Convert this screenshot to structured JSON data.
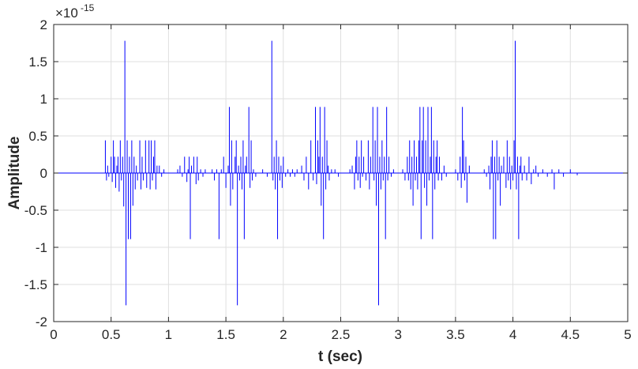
{
  "chart_data": {
    "type": "line",
    "title": "",
    "xlabel": "t (sec)",
    "ylabel": "Amplitude",
    "xlim": [
      0,
      5
    ],
    "ylim": [
      -2e-15,
      2e-15
    ],
    "x_ticks": [
      0,
      0.5,
      1,
      1.5,
      2,
      2.5,
      3,
      3.5,
      4,
      4.5,
      5
    ],
    "x_tick_labels": [
      "0",
      "0.5",
      "1",
      "1.5",
      "2",
      "2.5",
      "3",
      "3.5",
      "4",
      "4.5",
      "5"
    ],
    "y_ticks": [
      2,
      1.5,
      1,
      0.5,
      0,
      -0.5,
      -1,
      -1.5,
      -2
    ],
    "y_tick_labels": [
      "2",
      "1.5",
      "1",
      "0.5",
      "0",
      "-0.5",
      "-1",
      "-1.5",
      "-2"
    ],
    "y_multiplier": "×10",
    "y_multiplier_exponent": "-15",
    "grid": true,
    "line_color": "#0000ff",
    "spikes_units": "x1e-15",
    "spikes": [
      [
        0.45,
        0.44
      ],
      [
        0.46,
        -0.1
      ],
      [
        0.47,
        0.1
      ],
      [
        0.48,
        -0.05
      ],
      [
        0.5,
        0.22
      ],
      [
        0.51,
        -0.12
      ],
      [
        0.52,
        0.44
      ],
      [
        0.53,
        0.22
      ],
      [
        0.54,
        -0.2
      ],
      [
        0.55,
        0.1
      ],
      [
        0.56,
        0.22
      ],
      [
        0.57,
        -0.25
      ],
      [
        0.58,
        0.44
      ],
      [
        0.59,
        -0.1
      ],
      [
        0.6,
        0.22
      ],
      [
        0.61,
        -0.45
      ],
      [
        0.62,
        1.78
      ],
      [
        0.63,
        -1.78
      ],
      [
        0.64,
        0.44
      ],
      [
        0.65,
        -0.89
      ],
      [
        0.66,
        0.22
      ],
      [
        0.67,
        -0.89
      ],
      [
        0.68,
        0.44
      ],
      [
        0.69,
        -0.44
      ],
      [
        0.7,
        0.22
      ],
      [
        0.71,
        -0.22
      ],
      [
        0.72,
        0.1
      ],
      [
        0.73,
        -0.1
      ],
      [
        0.75,
        0.44
      ],
      [
        0.76,
        -0.22
      ],
      [
        0.77,
        0.22
      ],
      [
        0.78,
        -0.1
      ],
      [
        0.8,
        0.44
      ],
      [
        0.81,
        -0.2
      ],
      [
        0.83,
        0.44
      ],
      [
        0.84,
        -0.22
      ],
      [
        0.85,
        0.44
      ],
      [
        0.86,
        -0.1
      ],
      [
        0.87,
        0.22
      ],
      [
        0.88,
        0.44
      ],
      [
        0.89,
        -0.22
      ],
      [
        0.9,
        0.1
      ],
      [
        0.92,
        0.1
      ],
      [
        0.94,
        -0.05
      ],
      [
        0.96,
        0.05
      ],
      [
        1.08,
        0.05
      ],
      [
        1.1,
        0.1
      ],
      [
        1.12,
        -0.05
      ],
      [
        1.14,
        0.22
      ],
      [
        1.16,
        -0.12
      ],
      [
        1.17,
        0.05
      ],
      [
        1.18,
        0.22
      ],
      [
        1.19,
        -0.89
      ],
      [
        1.2,
        0.1
      ],
      [
        1.22,
        0.22
      ],
      [
        1.24,
        -0.15
      ],
      [
        1.25,
        0.22
      ],
      [
        1.26,
        -0.1
      ],
      [
        1.28,
        0.05
      ],
      [
        1.3,
        -0.05
      ],
      [
        1.32,
        0.05
      ],
      [
        1.38,
        0.05
      ],
      [
        1.4,
        -0.1
      ],
      [
        1.42,
        0.05
      ],
      [
        1.44,
        -0.89
      ],
      [
        1.46,
        0.05
      ],
      [
        1.48,
        0.22
      ],
      [
        1.5,
        -0.2
      ],
      [
        1.52,
        0.1
      ],
      [
        1.53,
        0.89
      ],
      [
        1.54,
        -0.44
      ],
      [
        1.55,
        0.44
      ],
      [
        1.56,
        -0.22
      ],
      [
        1.58,
        0.22
      ],
      [
        1.59,
        0.44
      ],
      [
        1.6,
        -1.78
      ],
      [
        1.61,
        0.1
      ],
      [
        1.62,
        -0.1
      ],
      [
        1.63,
        0.22
      ],
      [
        1.64,
        -0.22
      ],
      [
        1.65,
        0.44
      ],
      [
        1.66,
        -0.89
      ],
      [
        1.67,
        0.1
      ],
      [
        1.68,
        0.22
      ],
      [
        1.7,
        0.89
      ],
      [
        1.71,
        -0.2
      ],
      [
        1.72,
        0.44
      ],
      [
        1.73,
        -0.1
      ],
      [
        1.74,
        0.05
      ],
      [
        1.76,
        -0.05
      ],
      [
        1.82,
        0.05
      ],
      [
        1.86,
        -0.05
      ],
      [
        1.9,
        1.78
      ],
      [
        1.91,
        -0.1
      ],
      [
        1.92,
        0.22
      ],
      [
        1.93,
        -0.22
      ],
      [
        1.94,
        0.44
      ],
      [
        1.95,
        -0.89
      ],
      [
        1.96,
        0.22
      ],
      [
        1.97,
        -0.1
      ],
      [
        1.98,
        0.1
      ],
      [
        1.99,
        -0.2
      ],
      [
        2.0,
        0.22
      ],
      [
        2.02,
        -0.05
      ],
      [
        2.04,
        0.05
      ],
      [
        2.06,
        -0.05
      ],
      [
        2.08,
        0.05
      ],
      [
        2.1,
        -0.05
      ],
      [
        2.12,
        0.05
      ],
      [
        2.16,
        0.1
      ],
      [
        2.18,
        -0.1
      ],
      [
        2.2,
        0.22
      ],
      [
        2.22,
        -0.22
      ],
      [
        2.24,
        0.44
      ],
      [
        2.26,
        -0.1
      ],
      [
        2.28,
        0.89
      ],
      [
        2.29,
        -0.15
      ],
      [
        2.3,
        0.44
      ],
      [
        2.31,
        0.22
      ],
      [
        2.32,
        0.89
      ],
      [
        2.33,
        -0.44
      ],
      [
        2.34,
        0.22
      ],
      [
        2.35,
        -0.89
      ],
      [
        2.36,
        0.89
      ],
      [
        2.37,
        -0.22
      ],
      [
        2.38,
        0.44
      ],
      [
        2.39,
        0.1
      ],
      [
        2.4,
        -0.1
      ],
      [
        2.42,
        0.05
      ],
      [
        2.45,
        0.05
      ],
      [
        2.48,
        -0.05
      ],
      [
        2.58,
        0.05
      ],
      [
        2.6,
        0.1
      ],
      [
        2.62,
        -0.22
      ],
      [
        2.63,
        0.22
      ],
      [
        2.64,
        0.44
      ],
      [
        2.65,
        -0.1
      ],
      [
        2.66,
        0.22
      ],
      [
        2.67,
        -0.2
      ],
      [
        2.68,
        0.44
      ],
      [
        2.69,
        -0.05
      ],
      [
        2.7,
        0.22
      ],
      [
        2.72,
        -0.1
      ],
      [
        2.74,
        0.44
      ],
      [
        2.75,
        -0.22
      ],
      [
        2.76,
        0.22
      ],
      [
        2.78,
        0.89
      ],
      [
        2.79,
        -0.1
      ],
      [
        2.8,
        0.44
      ],
      [
        2.81,
        -0.44
      ],
      [
        2.82,
        0.89
      ],
      [
        2.83,
        -1.78
      ],
      [
        2.84,
        0.22
      ],
      [
        2.85,
        -0.22
      ],
      [
        2.86,
        0.44
      ],
      [
        2.87,
        -0.1
      ],
      [
        2.88,
        0.22
      ],
      [
        2.89,
        -0.89
      ],
      [
        2.9,
        0.89
      ],
      [
        2.91,
        -0.1
      ],
      [
        2.92,
        0.22
      ],
      [
        2.94,
        -0.05
      ],
      [
        2.96,
        0.05
      ],
      [
        3.04,
        0.05
      ],
      [
        3.06,
        -0.1
      ],
      [
        3.08,
        0.22
      ],
      [
        3.09,
        -0.1
      ],
      [
        3.1,
        0.44
      ],
      [
        3.11,
        -0.22
      ],
      [
        3.12,
        0.22
      ],
      [
        3.13,
        -0.44
      ],
      [
        3.14,
        0.44
      ],
      [
        3.15,
        -0.1
      ],
      [
        3.16,
        0.22
      ],
      [
        3.17,
        -0.22
      ],
      [
        3.18,
        0.44
      ],
      [
        3.19,
        0.89
      ],
      [
        3.2,
        -0.89
      ],
      [
        3.21,
        0.44
      ],
      [
        3.22,
        0.89
      ],
      [
        3.23,
        -0.2
      ],
      [
        3.24,
        0.44
      ],
      [
        3.25,
        -0.44
      ],
      [
        3.26,
        0.89
      ],
      [
        3.27,
        -0.1
      ],
      [
        3.28,
        0.22
      ],
      [
        3.29,
        0.89
      ],
      [
        3.3,
        -0.89
      ],
      [
        3.31,
        0.44
      ],
      [
        3.32,
        -0.22
      ],
      [
        3.33,
        0.22
      ],
      [
        3.34,
        0.44
      ],
      [
        3.35,
        -0.1
      ],
      [
        3.36,
        0.22
      ],
      [
        3.38,
        -0.1
      ],
      [
        3.4,
        0.1
      ],
      [
        3.42,
        -0.05
      ],
      [
        3.5,
        0.05
      ],
      [
        3.52,
        -0.1
      ],
      [
        3.54,
        0.22
      ],
      [
        3.55,
        -0.2
      ],
      [
        3.56,
        0.89
      ],
      [
        3.57,
        0.44
      ],
      [
        3.58,
        -0.1
      ],
      [
        3.59,
        0.22
      ],
      [
        3.6,
        -0.4
      ],
      [
        3.62,
        0.1
      ],
      [
        3.75,
        0.05
      ],
      [
        3.77,
        -0.05
      ],
      [
        3.79,
        0.1
      ],
      [
        3.8,
        -0.22
      ],
      [
        3.81,
        0.22
      ],
      [
        3.82,
        0.44
      ],
      [
        3.83,
        -0.89
      ],
      [
        3.84,
        0.22
      ],
      [
        3.85,
        -0.89
      ],
      [
        3.86,
        0.44
      ],
      [
        3.87,
        -0.1
      ],
      [
        3.88,
        0.22
      ],
      [
        3.89,
        -0.44
      ],
      [
        3.9,
        0.1
      ],
      [
        3.92,
        0.22
      ],
      [
        3.94,
        -0.2
      ],
      [
        3.95,
        0.44
      ],
      [
        3.96,
        -0.1
      ],
      [
        3.97,
        0.22
      ],
      [
        3.98,
        -0.22
      ],
      [
        3.99,
        0.1
      ],
      [
        4.0,
        -0.1
      ],
      [
        4.01,
        0.44
      ],
      [
        4.02,
        1.78
      ],
      [
        4.03,
        -0.22
      ],
      [
        4.04,
        0.22
      ],
      [
        4.05,
        -0.89
      ],
      [
        4.06,
        0.1
      ],
      [
        4.07,
        0.22
      ],
      [
        4.08,
        -0.1
      ],
      [
        4.1,
        0.1
      ],
      [
        4.12,
        -0.1
      ],
      [
        4.14,
        0.22
      ],
      [
        4.16,
        -0.15
      ],
      [
        4.18,
        0.05
      ],
      [
        4.2,
        0.1
      ],
      [
        4.22,
        -0.05
      ],
      [
        4.26,
        0.05
      ],
      [
        4.3,
        -0.05
      ],
      [
        4.34,
        0.05
      ],
      [
        4.36,
        -0.22
      ],
      [
        4.4,
        0.05
      ],
      [
        4.44,
        -0.05
      ],
      [
        4.5,
        0.05
      ],
      [
        4.56,
        -0.03
      ]
    ]
  }
}
